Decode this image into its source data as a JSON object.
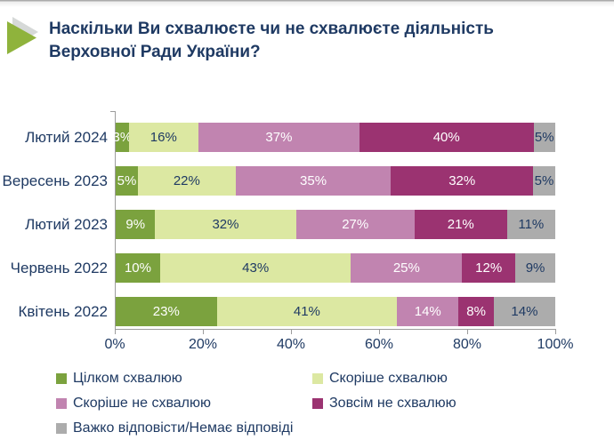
{
  "page": {
    "title": "Наскільки Ви схвалюєте чи не схвалюєте діяльність Верховної Ради України?"
  },
  "colors": {
    "title_text": "#1f3a63",
    "axis_line": "#9c9c9c",
    "arrow_green": "#8fb33c",
    "arrow_shadow": "#d6d9d8"
  },
  "chart_data": {
    "type": "bar",
    "stacked": true,
    "orientation": "horizontal",
    "title": "Наскільки Ви схвалюєте чи не схвалюєте діяльність Верховної Ради України?",
    "categories": [
      "Лютий 2024",
      "Вересень 2023",
      "Лютий 2023",
      "Червень 2022",
      "Квітень 2022"
    ],
    "series": [
      {
        "name": "Цілком схвалюю",
        "color": "#7ba23e",
        "label_color": "#ffffff",
        "values": [
          3,
          5,
          9,
          10,
          23
        ]
      },
      {
        "name": "Скоріше схвалюю",
        "color": "#dce8a2",
        "label_color": "#1f3a63",
        "values": [
          16,
          22,
          32,
          43,
          41
        ]
      },
      {
        "name": "Скоріше не схвалюю",
        "color": "#c184b0",
        "label_color": "#ffffff",
        "values": [
          37,
          35,
          27,
          25,
          14
        ]
      },
      {
        "name": "Зовсім не схвалюю",
        "color": "#9b3371",
        "label_color": "#ffffff",
        "values": [
          40,
          32,
          21,
          12,
          8
        ]
      },
      {
        "name": "Важко відповісти/Немає відповіді",
        "color": "#acacac",
        "label_color": "#1f3a63",
        "values": [
          5,
          5,
          11,
          9,
          14
        ]
      }
    ],
    "value_suffix": "%",
    "xlim": [
      0,
      100
    ],
    "x_tick_labels": [
      "0%",
      "20%",
      "40%",
      "60%",
      "80%",
      "100%"
    ],
    "grid": false,
    "legend_position": "bottom"
  }
}
